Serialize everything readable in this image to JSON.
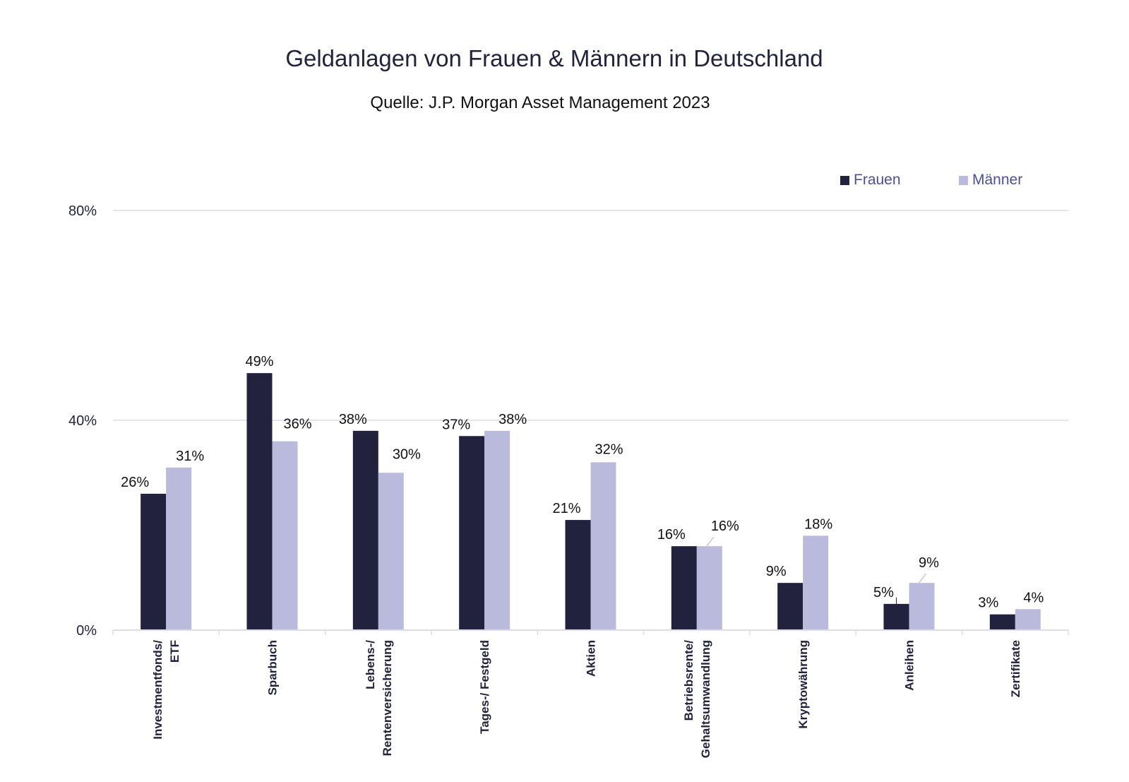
{
  "header": {
    "title": "Geldanlagen von Frauen & Männern in Deutschland",
    "subtitle": "Quelle: J.P. Morgan Asset Management 2023"
  },
  "legend": {
    "items": [
      {
        "label": "Frauen",
        "color": "#22223f"
      },
      {
        "label": "Männer",
        "color": "#babbdc"
      }
    ]
  },
  "colors": {
    "frauen": "#22223f",
    "maenner": "#babbdc",
    "gridline": "#dcdcec",
    "text": "#22223f"
  },
  "chart_data": {
    "type": "bar",
    "title": "Geldanlagen von Frauen & Männern in Deutschland",
    "subtitle": "Quelle: J.P. Morgan Asset Management 2023",
    "xlabel": "",
    "ylabel": "",
    "ylim": [
      0,
      80
    ],
    "yticks": [
      "0%",
      "40%",
      "80%"
    ],
    "grid": true,
    "legend_position": "top-right",
    "categories": [
      "Investmentfonds/ ETF",
      "Sparbuch",
      "Lebens-/ Rentenversicherung",
      "Tages-/ Festgeld",
      "Aktien",
      "Betriebsrente/ Gehaltsumwandlung",
      "Kryptowährung",
      "Anleihen",
      "Zertifikate"
    ],
    "category_lines": [
      [
        "Investmentfonds/",
        "ETF"
      ],
      [
        "Sparbuch"
      ],
      [
        "Lebens-/",
        "Rentenversicherung"
      ],
      [
        "Tages-/ Festgeld"
      ],
      [
        "Aktien"
      ],
      [
        "Betriebsrente/",
        "Gehaltsumwandlung"
      ],
      [
        "Kryptowährung"
      ],
      [
        "Anleihen"
      ],
      [
        "Zertifikate"
      ]
    ],
    "series": [
      {
        "name": "Frauen",
        "values": [
          26,
          49,
          38,
          37,
          21,
          16,
          9,
          5,
          3
        ],
        "labels": [
          "26%",
          "49%",
          "38%",
          "37%",
          "21%",
          "16%",
          "9%",
          "5%",
          "3%"
        ]
      },
      {
        "name": "Männer",
        "values": [
          31,
          36,
          30,
          38,
          32,
          16,
          18,
          9,
          4
        ],
        "labels": [
          "31%",
          "36%",
          "30%",
          "38%",
          "32%",
          "16%",
          "18%",
          "9%",
          "4%"
        ]
      }
    ]
  }
}
